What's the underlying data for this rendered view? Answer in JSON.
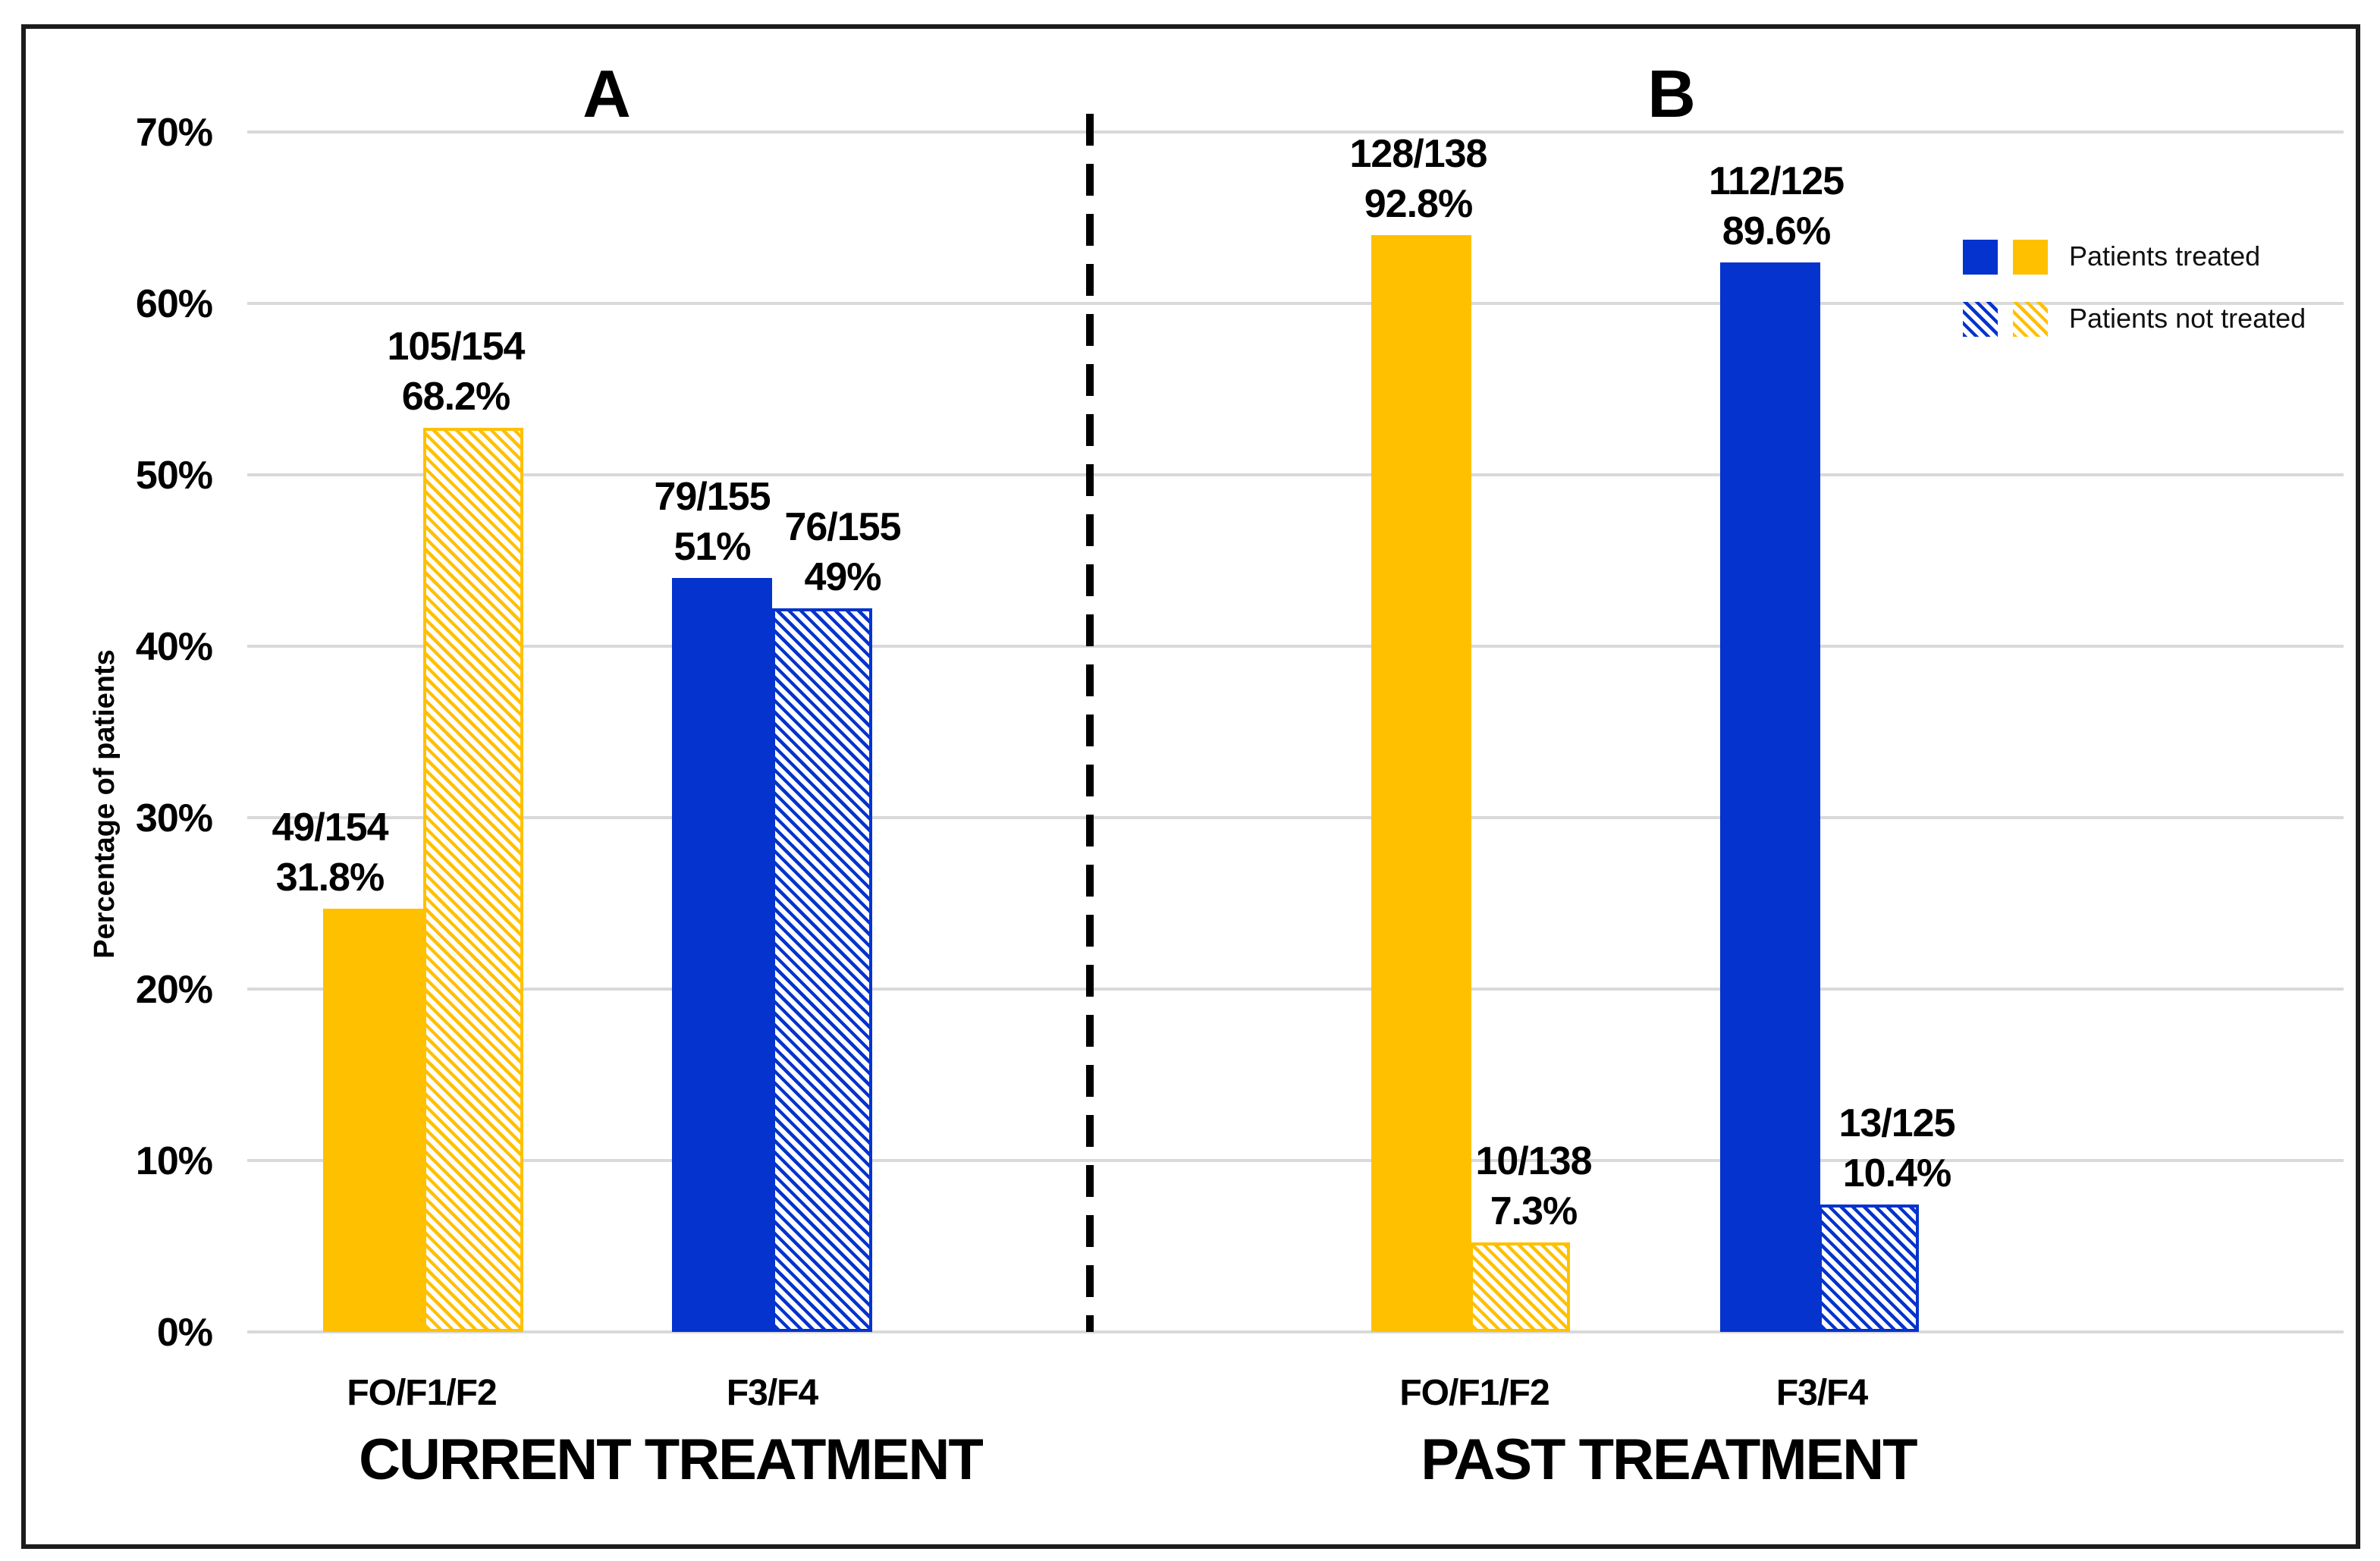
{
  "figure": {
    "y_axis_title": "Percentage of patients",
    "y_ticks": [
      "0%",
      "10%",
      "20%",
      "30%",
      "40%",
      "50%",
      "60%",
      "70%"
    ],
    "legend": [
      {
        "label": "Patients treated",
        "pattern": "solid"
      },
      {
        "label": "Patients not treated",
        "pattern": "hatched"
      }
    ]
  },
  "chart_data": {
    "type": "bar",
    "title": "",
    "xlabel": "",
    "ylabel": "Percentage of patients",
    "ylim": [
      0,
      70
    ],
    "grid": true,
    "legend_position": "top-right",
    "colors": {
      "blue": "#0433cd",
      "yellow": "#ffc000",
      "gridline": "#d9d9d9",
      "divider": "#000000",
      "frame": "#1c1c1c"
    },
    "panels": [
      {
        "letter": "A",
        "title": "CURRENT TREATMENT",
        "groups": [
          {
            "category": "FO/F1/F2",
            "bars": [
              {
                "series": "Patients treated",
                "color": "yellow",
                "pattern": "solid",
                "count": "49/154",
                "pct_label": "31.8%",
                "value_pct": 31.8,
                "drawn_pct": 24.7
              },
              {
                "series": "Patients not treated",
                "color": "yellow",
                "pattern": "hatched",
                "count": "105/154",
                "pct_label": "68.2%",
                "value_pct": 68.2,
                "drawn_pct": 52.7
              }
            ]
          },
          {
            "category": "F3/F4",
            "bars": [
              {
                "series": "Patients treated",
                "color": "blue",
                "pattern": "solid",
                "count": "79/155",
                "pct_label": "51%",
                "value_pct": 51,
                "drawn_pct": 44.0
              },
              {
                "series": "Patients not treated",
                "color": "blue",
                "pattern": "hatched",
                "count": "76/155",
                "pct_label": "49%",
                "value_pct": 49,
                "drawn_pct": 42.2
              }
            ]
          }
        ]
      },
      {
        "letter": "B",
        "title": "PAST TREATMENT",
        "groups": [
          {
            "category": "FO/F1/F2",
            "bars": [
              {
                "series": "Patients treated",
                "color": "yellow",
                "pattern": "solid",
                "count": "128/138",
                "pct_label": "92.8%",
                "value_pct": 92.8,
                "drawn_pct": 64.0
              },
              {
                "series": "Patients not treated",
                "color": "yellow",
                "pattern": "hatched",
                "count": "10/138",
                "pct_label": "7.3%",
                "value_pct": 7.3,
                "drawn_pct": 5.2
              }
            ]
          },
          {
            "category": "F3/F4",
            "bars": [
              {
                "series": "Patients treated",
                "color": "blue",
                "pattern": "solid",
                "count": "112/125",
                "pct_label": "89.6%",
                "value_pct": 89.6,
                "drawn_pct": 62.4
              },
              {
                "series": "Patients not treated",
                "color": "blue",
                "pattern": "hatched",
                "count": "13/125",
                "pct_label": "10.4%",
                "value_pct": 10.4,
                "drawn_pct": 7.4
              }
            ]
          }
        ]
      }
    ]
  }
}
